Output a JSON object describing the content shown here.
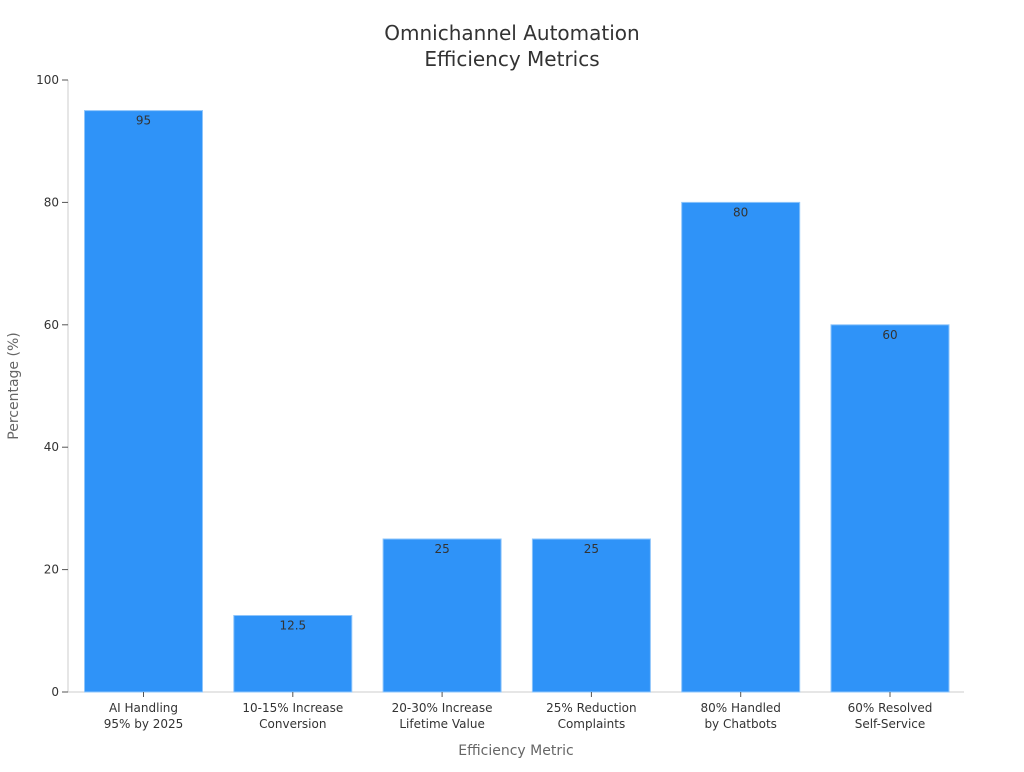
{
  "chart_data": {
    "type": "bar",
    "title_lines": [
      "Omnichannel Automation",
      "Efficiency Metrics"
    ],
    "xlabel": "Efficiency Metric",
    "ylabel": "Percentage (%)",
    "ylim": [
      0,
      100
    ],
    "yticks": [
      0,
      20,
      40,
      60,
      80,
      100
    ],
    "categories": [
      [
        "AI Handling",
        "95% by 2025"
      ],
      [
        "10-15% Increase",
        "Conversion"
      ],
      [
        "20-30% Increase",
        "Lifetime Value"
      ],
      [
        "25% Reduction",
        "Complaints"
      ],
      [
        "80% Handled",
        "by Chatbots"
      ],
      [
        "60% Resolved",
        "Self-Service"
      ]
    ],
    "values": [
      95,
      12.5,
      25,
      25,
      80,
      60
    ],
    "value_labels": [
      "95",
      "12.5",
      "25",
      "25",
      "80",
      "60"
    ],
    "grid": false,
    "legend": "none",
    "bar_color": "#2f93f8",
    "bar_edge_color": "#8ec5fb"
  }
}
